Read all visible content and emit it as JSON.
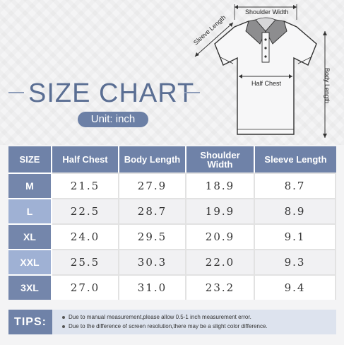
{
  "title": "SIZE CHART",
  "unit_label": "Unit: inch",
  "diagram": {
    "shoulder_width": "Shoulder Width",
    "sleeve_length": "Sleeve Length",
    "half_chest": "Half Chest",
    "body_length": "Body Length"
  },
  "table": {
    "headers": [
      "SIZE",
      "Half Chest",
      "Body Length",
      "Shoulder Width",
      "Sleeve Length"
    ],
    "rows": [
      {
        "size": "M",
        "values": [
          "21.5",
          "27.9",
          "18.9",
          "8.7"
        ]
      },
      {
        "size": "L",
        "values": [
          "22.5",
          "28.7",
          "19.9",
          "8.9"
        ]
      },
      {
        "size": "XL",
        "values": [
          "24.0",
          "29.5",
          "20.9",
          "9.1"
        ]
      },
      {
        "size": "XXL",
        "values": [
          "25.5",
          "30.3",
          "22.0",
          "9.3"
        ]
      },
      {
        "size": "3XL",
        "values": [
          "27.0",
          "31.0",
          "23.2",
          "9.4"
        ]
      }
    ]
  },
  "tips": {
    "label": "TIPS:",
    "items": [
      "Due to manual measurement,please allow 0.5-1 inch measurement error.",
      "Due to the difference of screen resolution,there may be a slight color difference."
    ]
  },
  "colors": {
    "header": "#6f82a8",
    "size_light": "#9fb1d4",
    "title": "#5a6e93",
    "tips_bg": "#dde3ee"
  }
}
